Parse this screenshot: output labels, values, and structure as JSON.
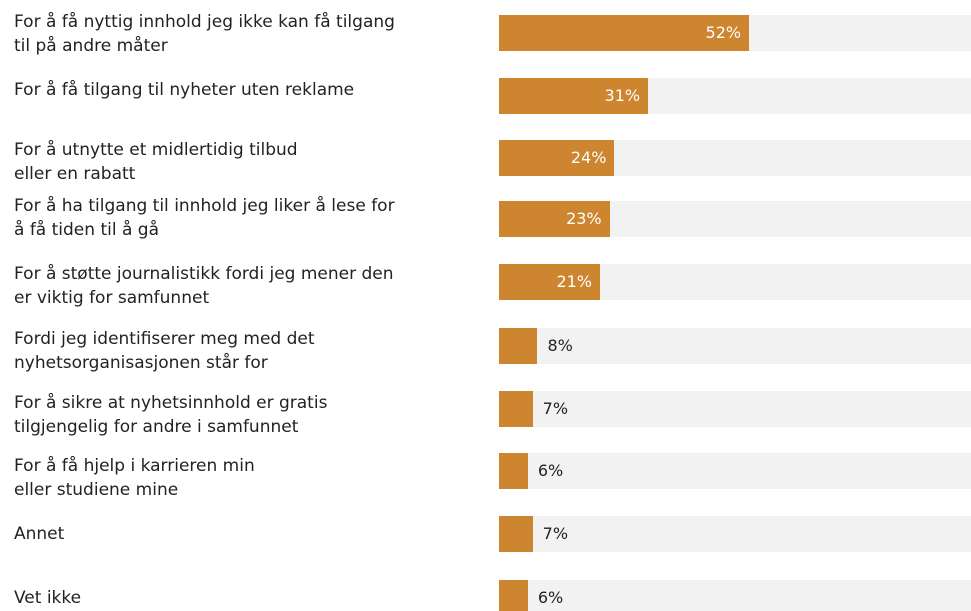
{
  "chart_data": {
    "type": "barh",
    "categories": [
      "For å få nyttig innhold jeg ikke kan få tilgang\ntil på andre måter",
      "For å få tilgang til nyheter uten reklame",
      "For å utnytte et midlertidig tilbud\neller en rabatt",
      "For å ha tilgang til innhold jeg liker å lese for\nå få tiden til å gå",
      "For å støtte journalistikk fordi jeg mener den\ner viktig for samfunnet",
      "Fordi jeg identifiserer meg med det\nnyhetsorganisasjonen står for",
      "For å sikre at nyhetsinnhold er gratis\ntilgjengelig for andre i samfunnet",
      "For å få hjelp i karrieren min\neller studiene mine",
      "Annet",
      "Vet ikke"
    ],
    "values": [
      52,
      31,
      24,
      23,
      21,
      8,
      7,
      6,
      7,
      6
    ],
    "value_labels": [
      "52%",
      "31%",
      "24%",
      "23%",
      "21%",
      "8%",
      "7%",
      "6%",
      "7%",
      "6%"
    ],
    "color": "#cd8530",
    "xlim": [
      0,
      100
    ]
  }
}
